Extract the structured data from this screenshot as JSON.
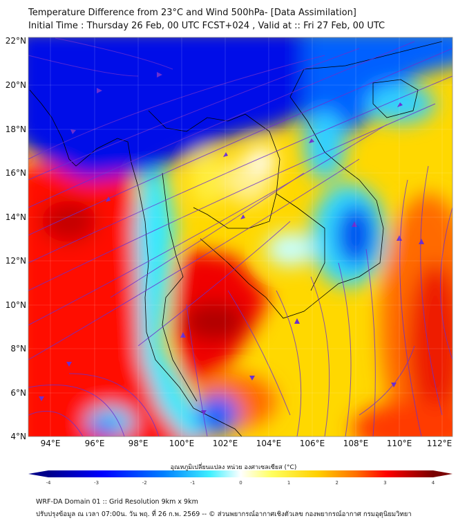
{
  "header": {
    "title": "Temperature Difference from 23°C and Wind 500hPa- [Data Assimilation]",
    "subtitle": "Initial Time : Thursday 26 Feb, 00 UTC FCST+024 , Valid at ::  Fri 27 Feb, 00 UTC"
  },
  "map": {
    "lat_labels": [
      "22°N",
      "20°N",
      "18°N",
      "16°N",
      "14°N",
      "12°N",
      "10°N",
      "8°N",
      "6°N",
      "4°N"
    ],
    "lon_labels": [
      "94°E",
      "96°E",
      "98°E",
      "100°E",
      "102°E",
      "104°E",
      "106°E",
      "108°E",
      "110°E",
      "112°E"
    ],
    "streamline_color": "#6a2fd0"
  },
  "colorbar": {
    "label": "อุณหภูมิเปลี่ยนแปลง หน่วย องศาเซลเซียส (°C)",
    "ticks": [
      "-4",
      "-3",
      "-2",
      "-1",
      "0",
      "1",
      "2",
      "3",
      "4"
    ],
    "range": [
      -4,
      4
    ],
    "colors": [
      "#00008b",
      "#0000ff",
      "#00bfff",
      "#7fffff",
      "#ffffff",
      "#ffff66",
      "#ffd700",
      "#ff8c00",
      "#ff0000",
      "#8b0000"
    ]
  },
  "footer": {
    "line1": "WRF-DA Domain 01 :: Grid Resolution 9km x 9km",
    "line2": "ปรับปรุงข้อมูล ณ เวลา 07:00น. วัน พฤ. ที่ 26 ก.พ. 2569 -- © ส่วนพยากรณ์อากาศเชิงตัวเลข กองพยากรณ์อากาศ กรมอุตุนิยมวิทยา"
  }
}
